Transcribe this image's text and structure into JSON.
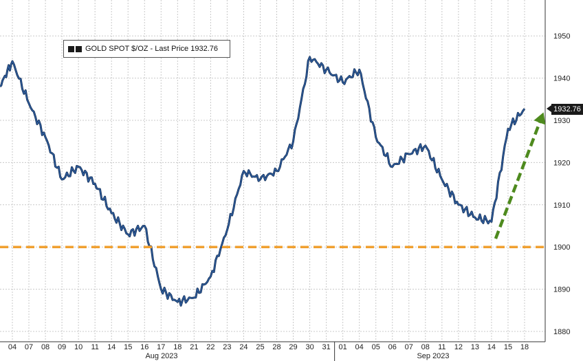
{
  "chart_data": {
    "type": "line",
    "legend": {
      "label": "GOLD SPOT $/OZ - Last Price 1932.76"
    },
    "last_price_tag": "1932.76",
    "ylim": [
      1878,
      1962
    ],
    "y_ticks": [
      1880,
      1890,
      1900,
      1910,
      1920,
      1930,
      1940,
      1950
    ],
    "x_ticks": [
      "04",
      "07",
      "08",
      "09",
      "10",
      "11",
      "14",
      "15",
      "16",
      "17",
      "18",
      "21",
      "22",
      "23",
      "24",
      "25",
      "28",
      "29",
      "30",
      "31",
      "01",
      "04",
      "05",
      "06",
      "07",
      "08",
      "11",
      "12",
      "13",
      "14",
      "15",
      "18"
    ],
    "month_labels": [
      "Aug 2023",
      "Sep 2023"
    ],
    "grid": true,
    "series": [
      {
        "color": "#2f5c9a",
        "x": [
          "03",
          "04",
          "07",
          "08",
          "09",
          "10",
          "11",
          "14",
          "15",
          "16",
          "17",
          "18",
          "21",
          "22",
          "23",
          "24",
          "25",
          "28",
          "29",
          "30",
          "31",
          "01",
          "04",
          "05",
          "06",
          "07",
          "08",
          "11",
          "12",
          "13",
          "14",
          "15",
          "18"
        ],
        "values": [
          1938,
          1944,
          1934,
          1926,
          1916,
          1919,
          1915,
          1908,
          1903,
          1905,
          1890,
          1887,
          1888,
          1893,
          1904,
          1918,
          1916,
          1918,
          1925,
          1945,
          1942,
          1939,
          1942,
          1926,
          1919,
          1922,
          1924,
          1916,
          1910,
          1907,
          1906,
          1928,
          1932.76
        ]
      }
    ],
    "annotations": [
      {
        "type": "horizontal-line",
        "y": 1900,
        "color": "#f0a030",
        "style": "dashed"
      },
      {
        "type": "arrow",
        "from": {
          "x": "14",
          "y": 1901
        },
        "to": {
          "x": "18",
          "y": 1932
        },
        "color": "#4e8a1e",
        "style": "dashed"
      }
    ]
  }
}
